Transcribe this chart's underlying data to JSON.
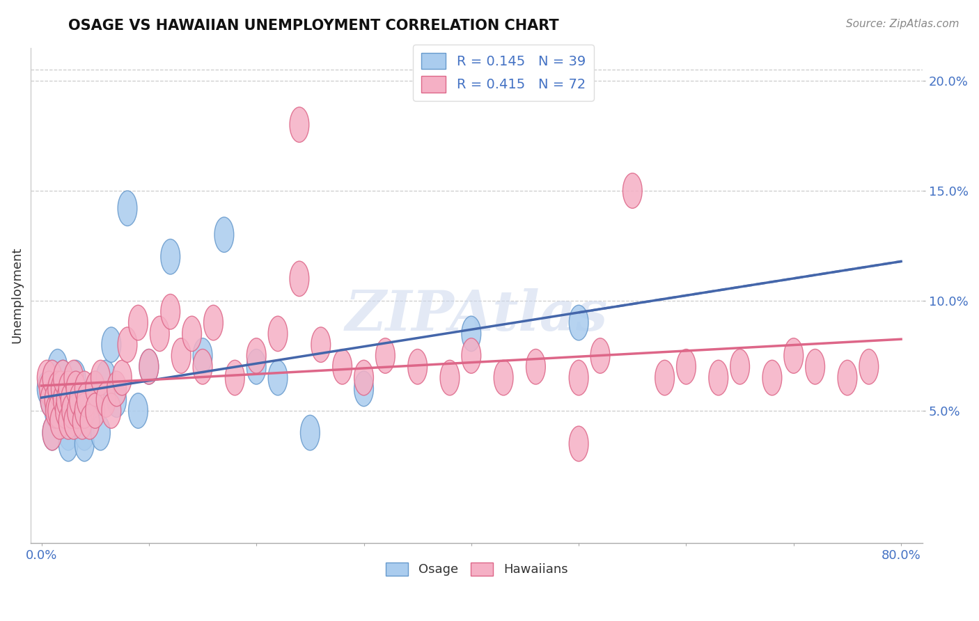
{
  "title": "OSAGE VS HAWAIIAN UNEMPLOYMENT CORRELATION CHART",
  "source_text": "Source: ZipAtlas.com",
  "ylabel": "Unemployment",
  "ylim": [
    -0.01,
    0.215
  ],
  "xlim": [
    -0.01,
    0.82
  ],
  "yticks": [
    0.05,
    0.1,
    0.15,
    0.2
  ],
  "ytick_labels": [
    "5.0%",
    "10.0%",
    "15.0%",
    "20.0%"
  ],
  "xtick_positions": [
    0.0,
    0.1,
    0.2,
    0.3,
    0.4,
    0.5,
    0.6,
    0.7,
    0.8
  ],
  "legend_r1_text": "R = 0.145   N = 39",
  "legend_r2_text": "R = 0.415   N = 72",
  "osage_color": "#aaccee",
  "osage_edge": "#6699cc",
  "hawaiian_color": "#f5b0c5",
  "hawaiian_edge": "#dd6688",
  "trend_osage_color": "#4466aa",
  "trend_hawaiian_color": "#dd6688",
  "watermark_text": "ZIPAtlas",
  "watermark_color": "#ccd8ee",
  "bottom_legend_labels": [
    "Osage",
    "Hawaiians"
  ],
  "osage_x": [
    0.005,
    0.008,
    0.01,
    0.01,
    0.012,
    0.015,
    0.015,
    0.018,
    0.02,
    0.02,
    0.022,
    0.025,
    0.025,
    0.028,
    0.03,
    0.03,
    0.032,
    0.035,
    0.04,
    0.04,
    0.045,
    0.05,
    0.05,
    0.055,
    0.06,
    0.065,
    0.07,
    0.08,
    0.09,
    0.1,
    0.12,
    0.15,
    0.17,
    0.2,
    0.22,
    0.25,
    0.3,
    0.4,
    0.5
  ],
  "osage_y": [
    0.06,
    0.055,
    0.065,
    0.04,
    0.05,
    0.06,
    0.07,
    0.05,
    0.045,
    0.065,
    0.06,
    0.04,
    0.035,
    0.055,
    0.05,
    0.06,
    0.065,
    0.045,
    0.04,
    0.035,
    0.055,
    0.06,
    0.05,
    0.04,
    0.065,
    0.08,
    0.055,
    0.142,
    0.05,
    0.07,
    0.12,
    0.075,
    0.13,
    0.07,
    0.065,
    0.04,
    0.06,
    0.085,
    0.09
  ],
  "hawaiian_x": [
    0.005,
    0.007,
    0.008,
    0.01,
    0.01,
    0.012,
    0.013,
    0.015,
    0.015,
    0.017,
    0.018,
    0.02,
    0.02,
    0.022,
    0.023,
    0.025,
    0.025,
    0.027,
    0.028,
    0.03,
    0.03,
    0.032,
    0.033,
    0.035,
    0.038,
    0.04,
    0.04,
    0.042,
    0.045,
    0.05,
    0.05,
    0.055,
    0.06,
    0.065,
    0.07,
    0.075,
    0.08,
    0.09,
    0.1,
    0.11,
    0.12,
    0.13,
    0.14,
    0.15,
    0.16,
    0.18,
    0.2,
    0.22,
    0.24,
    0.26,
    0.28,
    0.3,
    0.32,
    0.35,
    0.38,
    0.4,
    0.43,
    0.46,
    0.5,
    0.52,
    0.55,
    0.58,
    0.6,
    0.63,
    0.65,
    0.68,
    0.7,
    0.72,
    0.75,
    0.77,
    0.24,
    0.5
  ],
  "hawaiian_y": [
    0.065,
    0.06,
    0.055,
    0.065,
    0.04,
    0.055,
    0.05,
    0.06,
    0.05,
    0.045,
    0.06,
    0.055,
    0.065,
    0.05,
    0.055,
    0.045,
    0.06,
    0.055,
    0.05,
    0.065,
    0.045,
    0.06,
    0.05,
    0.055,
    0.045,
    0.06,
    0.05,
    0.055,
    0.045,
    0.06,
    0.05,
    0.065,
    0.055,
    0.05,
    0.06,
    0.065,
    0.08,
    0.09,
    0.07,
    0.085,
    0.095,
    0.075,
    0.085,
    0.07,
    0.09,
    0.065,
    0.075,
    0.085,
    0.18,
    0.08,
    0.07,
    0.065,
    0.075,
    0.07,
    0.065,
    0.075,
    0.065,
    0.07,
    0.065,
    0.075,
    0.15,
    0.065,
    0.07,
    0.065,
    0.07,
    0.065,
    0.075,
    0.07,
    0.065,
    0.07,
    0.11,
    0.035
  ]
}
